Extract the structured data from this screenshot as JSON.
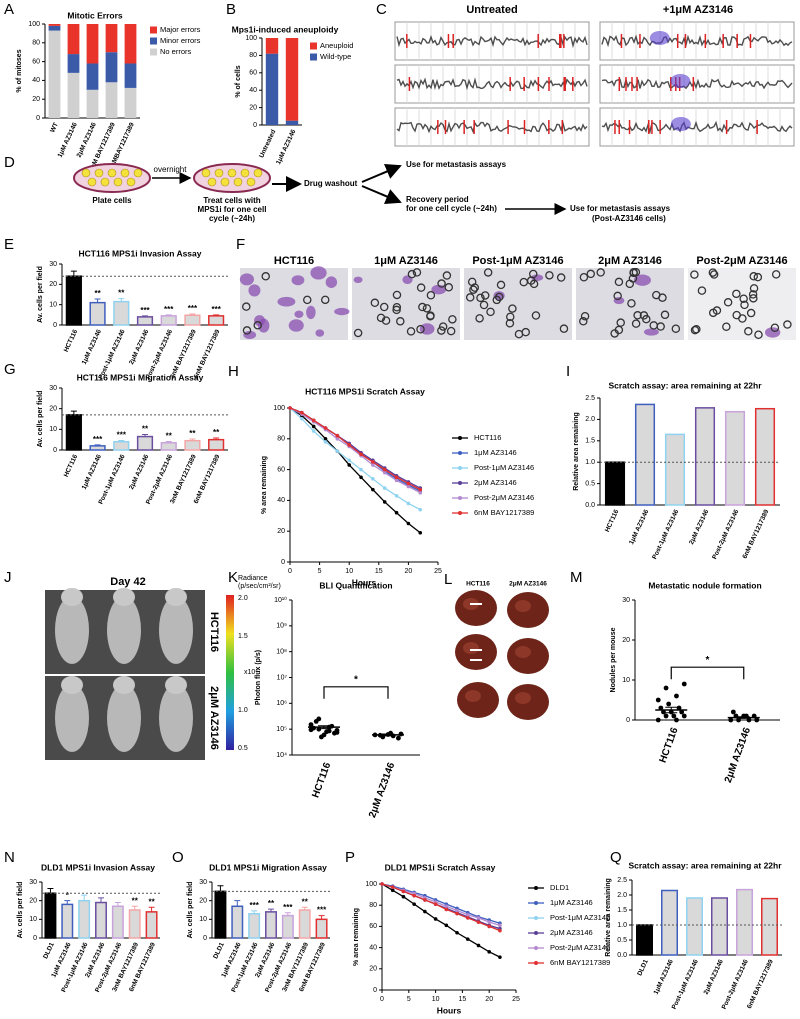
{
  "chart_data": [
    {
      "type": "bar",
      "panel": "A",
      "title": "Mitotic Errors",
      "ylabel": "% of mitoses",
      "stacked": true,
      "categories": [
        "WT",
        "1μM AZ3146",
        "2μM AZ3146",
        "3nM BAY1217389",
        "6nMBAY1217389"
      ],
      "series": [
        {
          "name": "No errors",
          "color": "#d0d0d0",
          "values": [
            93,
            48,
            30,
            38,
            32
          ]
        },
        {
          "name": "Minor errors",
          "color": "#3b5ba9",
          "values": [
            5,
            20,
            28,
            32,
            26
          ]
        },
        {
          "name": "Major errors",
          "color": "#e8342a",
          "values": [
            2,
            32,
            42,
            30,
            42
          ]
        }
      ],
      "ylim": [
        0,
        100
      ],
      "yticks": [
        0,
        20,
        40,
        60,
        80,
        100
      ]
    },
    {
      "type": "bar",
      "panel": "B",
      "title": "Mps1i-induced aneuploidy",
      "ylabel": "% of cells",
      "stacked": true,
      "categories": [
        "Untreated",
        "1μM AZ3146"
      ],
      "series": [
        {
          "name": "Wild-type",
          "color": "#3b5ba9",
          "values": [
            82,
            5
          ]
        },
        {
          "name": "Aneuploid",
          "color": "#e8342a",
          "values": [
            18,
            95
          ]
        }
      ],
      "ylim": [
        0,
        100
      ],
      "yticks": [
        0,
        20,
        40,
        60,
        80,
        100
      ]
    },
    {
      "type": "bar",
      "panel": "E",
      "title": "HCT116 MPS1i Invasion Assay",
      "ylabel": "Av. cells per field",
      "categories": [
        "HCT116",
        "1μM AZ3146",
        "Post-1μM AZ3146",
        "2μM AZ3146",
        "Post-2μM AZ3146",
        "3nM BAY1217389",
        "6nM BAY1217389"
      ],
      "values": [
        24,
        11,
        11.5,
        4,
        4.5,
        4.8,
        4.5
      ],
      "errors": [
        2.5,
        1.8,
        1.5,
        0.5,
        0.5,
        0.6,
        0.5
      ],
      "annotations": [
        null,
        "**",
        "**",
        "***",
        "***",
        "***",
        "***"
      ],
      "fills": [
        "#000000",
        "#d9d9d9",
        "#d9d9d9",
        "#d9d9d9",
        "#d9d9d9",
        "#d9d9d9",
        "#d9d9d9"
      ],
      "edges": [
        "#000000",
        "#3f5fbf",
        "#8fd3f0",
        "#6a4fa0",
        "#c9a3dc",
        "#f4a6a6",
        "#e03030"
      ],
      "reference_line": 24,
      "ylim": [
        0,
        30
      ],
      "yticks": [
        0,
        10,
        20,
        30
      ]
    },
    {
      "type": "bar",
      "panel": "G",
      "title": "HCT116 MPS1i Migration Assay",
      "ylabel": "Av. cells per field",
      "categories": [
        "HCT116",
        "1μM AZ3146",
        "Post-1μM AZ3146",
        "2μM AZ3146",
        "Post-2μM AZ3146",
        "3nM BAY1217389",
        "6nM BAY1217389"
      ],
      "values": [
        17,
        2,
        4,
        6.5,
        3.5,
        4.5,
        5
      ],
      "errors": [
        1.8,
        0.5,
        0.6,
        1,
        0.6,
        0.8,
        0.8
      ],
      "annotations": [
        null,
        "***",
        "***",
        "**",
        "**",
        "**",
        "**"
      ],
      "fills": [
        "#000000",
        "#d9d9d9",
        "#d9d9d9",
        "#d9d9d9",
        "#d9d9d9",
        "#d9d9d9",
        "#d9d9d9"
      ],
      "edges": [
        "#000000",
        "#3f5fbf",
        "#8fd3f0",
        "#6a4fa0",
        "#c9a3dc",
        "#f4a6a6",
        "#e03030"
      ],
      "reference_line": 17,
      "ylim": [
        0,
        30
      ],
      "yticks": [
        0,
        10,
        20,
        30
      ]
    },
    {
      "type": "line",
      "panel": "H",
      "title": "HCT116 MPS1i Scratch Assay",
      "ylabel": "% area remaining",
      "xlabel": "Hours",
      "x": [
        0,
        2,
        4,
        6,
        8,
        10,
        12,
        14,
        16,
        18,
        20,
        22
      ],
      "series": [
        {
          "name": "HCT116",
          "color": "#000000",
          "values": [
            100,
            95,
            88,
            80,
            72,
            63,
            55,
            47,
            39,
            32,
            25,
            19
          ]
        },
        {
          "name": "1μM AZ3146",
          "color": "#3f5fbf",
          "values": [
            100,
            97,
            92,
            87,
            82,
            76,
            70,
            65,
            59,
            54,
            50,
            46
          ]
        },
        {
          "name": "Post-1μM AZ3146",
          "color": "#8fd3f0",
          "values": [
            100,
            93,
            85,
            78,
            72,
            66,
            60,
            54,
            48,
            43,
            38,
            34
          ]
        },
        {
          "name": "2μM AZ3146",
          "color": "#5b3f99",
          "values": [
            100,
            97,
            92,
            87,
            82,
            77,
            71,
            66,
            61,
            56,
            52,
            48
          ]
        },
        {
          "name": "Post-2μM AZ3146",
          "color": "#b48ad0",
          "values": [
            100,
            96,
            91,
            86,
            80,
            75,
            69,
            63,
            58,
            53,
            49,
            45
          ]
        },
        {
          "name": "6nM BAY1217389",
          "color": "#e03030",
          "values": [
            100,
            97,
            92,
            87,
            82,
            76,
            70,
            65,
            60,
            55,
            51,
            47
          ]
        }
      ],
      "xlim": [
        0,
        25
      ],
      "xticks": [
        0,
        5,
        10,
        15,
        20,
        25
      ],
      "ylim": [
        0,
        100
      ],
      "yticks": [
        0,
        20,
        40,
        60,
        80,
        100
      ]
    },
    {
      "type": "bar",
      "panel": "I",
      "title": "Scratch assay: area remaining at 22hr",
      "ylabel": "Relative area remaining",
      "categories": [
        "HCT116",
        "1μM AZ3146",
        "Post-1μM AZ3146",
        "2μM AZ3146",
        "Post-2μM AZ3146",
        "6nM BAY1217389"
      ],
      "values": [
        1,
        2.35,
        1.65,
        2.27,
        2.18,
        2.25
      ],
      "fills": [
        "#000000",
        "#d9d9d9",
        "#d9d9d9",
        "#d9d9d9",
        "#d9d9d9",
        "#d9d9d9"
      ],
      "edges": [
        "#000000",
        "#3f5fbf",
        "#8fd3f0",
        "#6a4fa0",
        "#c9a3dc",
        "#e03030"
      ],
      "reference_line": 1,
      "ylim": [
        0,
        2.5
      ],
      "yticks": [
        {
          "value": 0,
          "label": "0.0"
        },
        0.5,
        {
          "value": 1,
          "label": "1.0"
        },
        1.5,
        {
          "value": 2,
          "label": "2.0"
        },
        2.5
      ]
    },
    {
      "type": "strip",
      "panel": "K",
      "title": "BLI Quantification",
      "ylabel": "Photon flux (p/s)",
      "log": true,
      "categories": [
        "HCT116",
        "2μM AZ3146"
      ],
      "points": [
        [
          150000,
          120000,
          100000,
          90000,
          80000,
          200000,
          70000,
          60000,
          110000,
          130000,
          50000,
          95000,
          85000,
          250000,
          75000
        ],
        [
          60000,
          55000,
          50000,
          65000,
          70000,
          58000,
          45000,
          62000
        ]
      ],
      "means": [
        120000,
        60000
      ],
      "sem": [
        15000,
        5000
      ],
      "significance": "*",
      "ylim": [
        10000,
        10000000000
      ],
      "yticks": [
        {
          "value": 10000,
          "label": "10⁴"
        },
        {
          "value": 100000,
          "label": "10⁵"
        },
        {
          "value": 1000000,
          "label": "10⁶"
        },
        {
          "value": 10000000,
          "label": "10⁷"
        },
        {
          "value": 100000000,
          "label": "10⁸"
        },
        {
          "value": 1000000000,
          "label": "10⁹"
        },
        {
          "value": 10000000000,
          "label": "10¹⁰"
        }
      ]
    },
    {
      "type": "strip",
      "panel": "M",
      "title": "Metastatic nodule formation",
      "ylabel": "Nodules per mouse",
      "categories": [
        "HCT116",
        "2μM AZ3146"
      ],
      "points": [
        [
          0,
          0,
          1,
          1,
          1,
          2,
          2,
          2,
          3,
          3,
          4,
          5,
          6,
          8,
          9
        ],
        [
          0,
          0,
          0,
          0,
          1,
          1,
          1,
          1,
          2
        ]
      ],
      "means": [
        2.5,
        0.6
      ],
      "sem": [
        0.7,
        0.2
      ],
      "significance": "*",
      "ylim": [
        0,
        30
      ],
      "yticks": [
        0,
        10,
        20,
        30
      ]
    },
    {
      "type": "bar",
      "panel": "N",
      "title": "DLD1 MPS1i Invasion Assay",
      "ylabel": "Av. cells per field",
      "categories": [
        "DLD1",
        "1μM AZ3146",
        "Post-1μM AZ3146",
        "2μM AZ3146",
        "Post-2μM AZ3146",
        "3nM BAY1217389",
        "6nM BAY1217389"
      ],
      "values": [
        24,
        18,
        20,
        19,
        17,
        15,
        14
      ],
      "errors": [
        2.5,
        2,
        3,
        2.5,
        2,
        2,
        2.5
      ],
      "annotations": [
        null,
        "*",
        null,
        null,
        null,
        "**",
        "**"
      ],
      "fills": [
        "#000000",
        "#d9d9d9",
        "#d9d9d9",
        "#d9d9d9",
        "#d9d9d9",
        "#d9d9d9",
        "#d9d9d9"
      ],
      "edges": [
        "#000000",
        "#3f5fbf",
        "#8fd3f0",
        "#6a4fa0",
        "#c9a3dc",
        "#f4a6a6",
        "#e03030"
      ],
      "reference_line": 24,
      "ylim": [
        0,
        30
      ],
      "yticks": [
        0,
        10,
        20,
        30
      ]
    },
    {
      "type": "bar",
      "panel": "O",
      "title": "DLD1 MPS1i Migration Assay",
      "ylabel": "Av. cells per field",
      "categories": [
        "DLD1",
        "1μM AZ3146",
        "Post-1μM AZ3146",
        "2μM AZ3146",
        "Post-2μM AZ3146",
        "3nM BAY1217389",
        "6nM BAY1217389"
      ],
      "values": [
        25,
        17,
        13,
        14,
        12,
        15,
        10
      ],
      "errors": [
        3,
        3,
        1.5,
        1.5,
        1.5,
        1.5,
        2
      ],
      "annotations": [
        null,
        null,
        "***",
        "**",
        "***",
        "**",
        "***"
      ],
      "fills": [
        "#000000",
        "#d9d9d9",
        "#d9d9d9",
        "#d9d9d9",
        "#d9d9d9",
        "#d9d9d9",
        "#d9d9d9"
      ],
      "edges": [
        "#000000",
        "#3f5fbf",
        "#8fd3f0",
        "#6a4fa0",
        "#c9a3dc",
        "#f4a6a6",
        "#e03030"
      ],
      "reference_line": 25,
      "ylim": [
        0,
        30
      ],
      "yticks": [
        0,
        10,
        20,
        30
      ]
    },
    {
      "type": "line",
      "panel": "P",
      "title": "DLD1 MPS1i Scratch Assay",
      "ylabel": "% area remaining",
      "xlabel": "Hours",
      "x": [
        0,
        2,
        4,
        6,
        8,
        10,
        12,
        14,
        16,
        18,
        20,
        22
      ],
      "series": [
        {
          "name": "DLD1",
          "color": "#000000",
          "values": [
            100,
            94,
            88,
            81,
            74,
            67,
            61,
            54,
            48,
            42,
            36,
            31
          ]
        },
        {
          "name": "1μM AZ3146",
          "color": "#3f5fbf",
          "values": [
            100,
            98,
            95,
            92,
            89,
            85,
            81,
            77,
            73,
            69,
            66,
            63
          ]
        },
        {
          "name": "Post-1μM AZ3146",
          "color": "#8fd3f0",
          "values": [
            100,
            97,
            93,
            89,
            85,
            81,
            77,
            72,
            68,
            64,
            60,
            57
          ]
        },
        {
          "name": "2μM AZ3146",
          "color": "#5b3f99",
          "values": [
            100,
            97,
            93,
            89,
            85,
            81,
            77,
            73,
            69,
            65,
            61,
            58
          ]
        },
        {
          "name": "Post-2μM AZ3146",
          "color": "#b48ad0",
          "values": [
            100,
            97,
            94,
            91,
            87,
            83,
            79,
            75,
            71,
            68,
            64,
            61
          ]
        },
        {
          "name": "6nM BAY1217389",
          "color": "#e03030",
          "values": [
            100,
            97,
            93,
            89,
            85,
            81,
            76,
            72,
            68,
            64,
            60,
            56
          ]
        }
      ],
      "xlim": [
        0,
        25
      ],
      "xticks": [
        0,
        5,
        10,
        15,
        20,
        25
      ],
      "ylim": [
        0,
        100
      ],
      "yticks": [
        0,
        20,
        40,
        60,
        80,
        100
      ]
    },
    {
      "type": "bar",
      "panel": "Q",
      "title": "Scratch assay: area remaining at 22hr",
      "ylabel": "Relative area remaining",
      "categories": [
        "DLD1",
        "1μM AZ3146",
        "Post-1μM AZ3146",
        "2μM AZ3146",
        "Post-2μM AZ3146",
        "6nM BAY1217389"
      ],
      "values": [
        1,
        2.15,
        1.9,
        1.9,
        2.18,
        1.88
      ],
      "fills": [
        "#000000",
        "#d9d9d9",
        "#d9d9d9",
        "#d9d9d9",
        "#d9d9d9",
        "#d9d9d9"
      ],
      "edges": [
        "#000000",
        "#3f5fbf",
        "#8fd3f0",
        "#6a4fa0",
        "#c9a3dc",
        "#e03030"
      ],
      "reference_line": 1,
      "ylim": [
        0,
        2.5
      ],
      "yticks": [
        {
          "value": 0,
          "label": "0.0"
        },
        0.5,
        {
          "value": 1,
          "label": "1.0"
        },
        1.5,
        {
          "value": 2,
          "label": "2.0"
        },
        2.5
      ]
    }
  ],
  "panel_C": {
    "letter": "C",
    "headers": [
      "Untreated",
      "+1μM AZ3146"
    ]
  },
  "panel_D": {
    "letter": "D",
    "plate": "Plate cells",
    "overnight": "overnight",
    "treat": [
      "Treat cells with",
      "MPS1i for one cell",
      "cycle (~24h)"
    ],
    "washout": "Drug washout",
    "use": "Use for metastasis assays",
    "recovery": [
      "Recovery period",
      "for one cell cycle (~24h)"
    ],
    "use_post": [
      "Use for metastasis assays",
      "(Post-AZ3146 cells)"
    ]
  },
  "panel_F": {
    "letter": "F",
    "labels": [
      "HCT116",
      "1μM AZ3146",
      "Post-1μM AZ3146",
      "2μM AZ3146",
      "Post-2μM AZ3146"
    ]
  },
  "panel_J": {
    "letter": "J",
    "title": "Day 42",
    "legend_title": [
      "Radiance",
      "(p/sec/cm²/sr)"
    ],
    "scale_labels": [
      "2.0",
      "1.5",
      "1.0",
      "0.5"
    ],
    "multiplier": "x10⁶",
    "rows": [
      "HCT116",
      "2μM AZ3146"
    ]
  },
  "panel_L": {
    "letter": "L",
    "labels": [
      "HCT116",
      "2μM AZ3146"
    ]
  }
}
